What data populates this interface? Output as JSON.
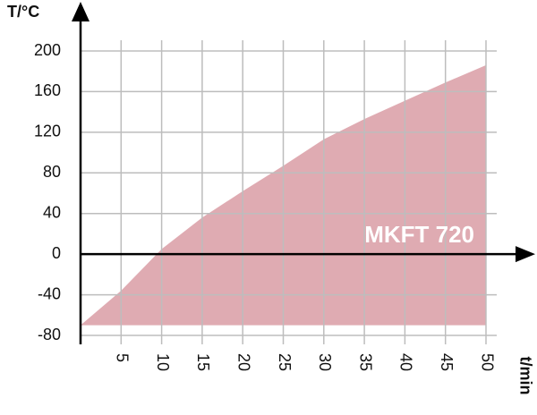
{
  "chart_data": {
    "type": "area",
    "y_label": "T/°C",
    "x_label": "t/min",
    "annotation": "MKFT 720",
    "x": [
      0,
      5,
      10,
      15,
      20,
      25,
      30,
      35,
      40,
      45,
      50
    ],
    "values": [
      -70,
      -36,
      5,
      36,
      62,
      87,
      113,
      133,
      151,
      169,
      186
    ],
    "color": "#c9737f",
    "xlim": [
      0,
      50
    ],
    "ylim": [
      -80,
      200
    ],
    "xticks": [
      5,
      10,
      15,
      20,
      25,
      30,
      35,
      40,
      45,
      50
    ],
    "yticks": [
      -80,
      -40,
      0,
      40,
      80,
      120,
      160,
      200
    ],
    "grid": true
  }
}
